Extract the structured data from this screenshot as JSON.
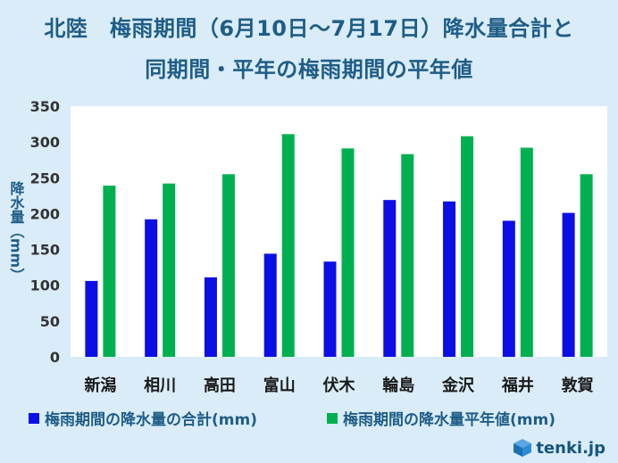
{
  "title_line1": "北陸　梅雨期間（6月10日～7月17日）降水量合計と",
  "title_line2": "同期間・平年の梅雨期間の平年値",
  "logo_text": "tenki.jp",
  "colors": {
    "series1": "#0b0fe6",
    "series2": "#00b050",
    "background": "#d9ecf8",
    "plot": "#ffffff",
    "text": "#1f5d86"
  },
  "chart_data": {
    "type": "bar",
    "title": "北陸　梅雨期間（6月10日～7月17日）降水量合計と 同期間・平年の梅雨期間の平年値",
    "xlabel": "",
    "ylabel": "降水量（mm）",
    "ylim": [
      0,
      350
    ],
    "yticks": [
      0,
      50,
      100,
      150,
      200,
      250,
      300,
      350
    ],
    "grid": false,
    "legend": "bottom",
    "categories": [
      "新潟",
      "相川",
      "高田",
      "富山",
      "伏木",
      "輪島",
      "金沢",
      "福井",
      "敦賀"
    ],
    "series": [
      {
        "name": "梅雨期間の降水量の合計(mm)",
        "values": [
          106,
          192,
          111,
          144,
          133,
          219,
          217,
          190,
          201
        ]
      },
      {
        "name": "梅雨期間の降水量平年値(mm)",
        "values": [
          239,
          242,
          255,
          311,
          291,
          283,
          308,
          292,
          255
        ]
      }
    ]
  }
}
